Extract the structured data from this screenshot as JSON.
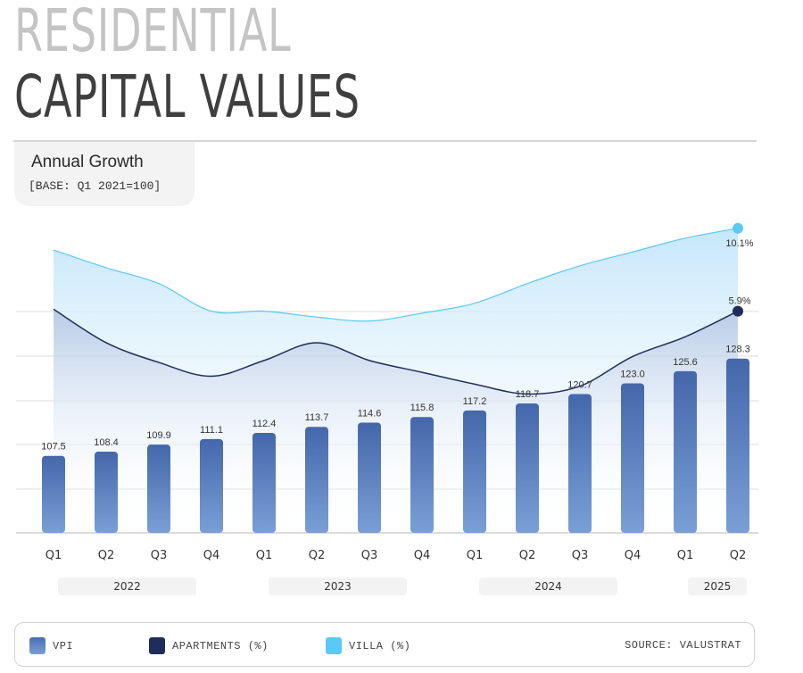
{
  "header": {
    "title_line1": "RESIDENTIAL",
    "title_line2": "CAPITAL VALUES"
  },
  "info": {
    "heading": "Annual Growth",
    "base": "[BASE: Q1 2021=100]"
  },
  "chart_data": {
    "type": "bar+line",
    "categories": [
      "Q1",
      "Q2",
      "Q3",
      "Q4",
      "Q1",
      "Q2",
      "Q3",
      "Q4",
      "Q1",
      "Q2",
      "Q3",
      "Q4",
      "Q1",
      "Q2"
    ],
    "years": [
      {
        "label": "2022",
        "from": 0,
        "to": 3
      },
      {
        "label": "2023",
        "from": 4,
        "to": 7
      },
      {
        "label": "2024",
        "from": 8,
        "to": 11
      },
      {
        "label": "2025",
        "from": 12,
        "to": 13
      }
    ],
    "series": [
      {
        "name": "VPI",
        "kind": "bar",
        "color": "#4a6fb0",
        "values": [
          107.5,
          108.4,
          109.9,
          111.1,
          112.4,
          113.7,
          114.6,
          115.8,
          117.2,
          118.7,
          120.7,
          123.0,
          125.6,
          128.3
        ],
        "labels": [
          "107.5",
          "108.4",
          "109.9",
          "111.1",
          "112.4",
          "113.7",
          "114.6",
          "115.8",
          "117.2",
          "118.7",
          "120.7",
          "123.0",
          "125.6",
          "128.3"
        ]
      },
      {
        "name": "APARTMENTS (%)",
        "kind": "line",
        "color": "#1f2d5a",
        "values": [
          6.0,
          4.3,
          3.3,
          2.6,
          3.4,
          4.3,
          3.4,
          2.8,
          2.2,
          1.7,
          2.1,
          3.6,
          4.6,
          5.9
        ],
        "end_label": "5.9%"
      },
      {
        "name": "VILLA (%)",
        "kind": "line",
        "color": "#5bc8f5",
        "values": [
          9.0,
          8.1,
          7.3,
          5.9,
          5.9,
          5.6,
          5.4,
          5.8,
          6.3,
          7.3,
          8.2,
          8.9,
          9.6,
          10.1
        ],
        "end_label": "10.1%"
      }
    ],
    "grid": true,
    "legend_position": "bottom"
  },
  "legend": {
    "items": [
      "VPI",
      "APARTMENTS (%)",
      "VILLA (%)"
    ],
    "source": "SOURCE: VALUSTRAT"
  }
}
